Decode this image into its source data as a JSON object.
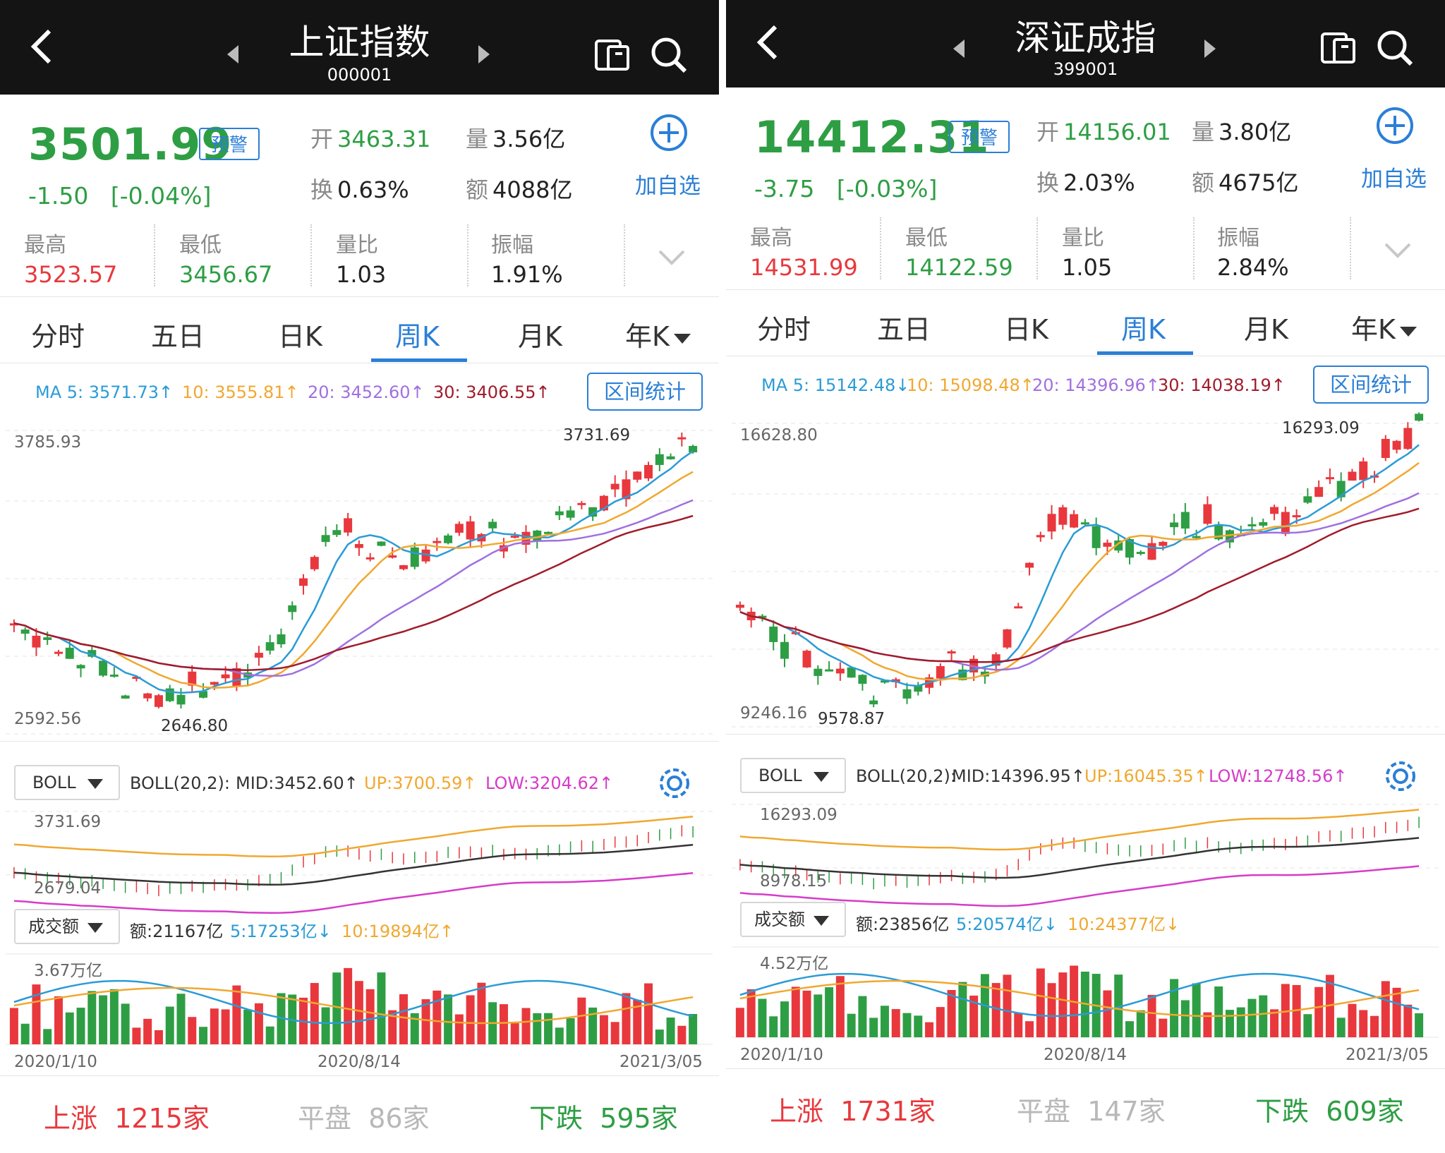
{
  "panels": [
    {
      "title": "上证指数",
      "code": "000001",
      "price": "3501.99",
      "alert_label": "预警",
      "change": "-1.50",
      "change_pct": "[-0.04%]",
      "open_label": "开",
      "open": "3463.31",
      "volume_label": "量",
      "volume": "3.56亿",
      "turnover_label": "换",
      "turnover": "0.63%",
      "amount_label": "额",
      "amount": "4088亿",
      "add_label": "加自选",
      "high_label": "最高",
      "high": "3523.57",
      "low_label": "最低",
      "low": "3456.67",
      "ratio_label": "量比",
      "ratio": "1.03",
      "amp_label": "振幅",
      "amp": "1.91%",
      "tabs": [
        "分时",
        "五日",
        "日K",
        "周K",
        "月K",
        "年K"
      ],
      "active_tab": "周K",
      "ma": {
        "ma5": "MA 5: 3571.73↑",
        "ma10": "10: 3555.81↑",
        "ma20": "20: 3452.60↑",
        "ma30": "30: 3406.55↑"
      },
      "range_label": "区间统计",
      "k_top": "3785.93",
      "k_bottom": "2592.56",
      "k_max_label": "3731.69",
      "k_min_label": "2646.80",
      "boll_select": "BOLL",
      "boll": {
        "params": "BOLL(20,2):",
        "mid": "MID:3452.60↑",
        "up": "UP:3700.59↑",
        "low": "LOW:3204.62↑"
      },
      "boll_top": "3731.69",
      "boll_bottom": "2679.04",
      "vol_select": "成交额",
      "vol": {
        "amt": "额:21167亿",
        "ma5": "5:17253亿↓",
        "ma10": "10:19894亿↑"
      },
      "vol_top": "3.67万亿",
      "dates": [
        "2020/1/10",
        "2020/8/14",
        "2021/3/05"
      ],
      "rise": "上涨",
      "rise_n": "1215家",
      "flat": "平盘",
      "flat_n": "86家",
      "fall": "下跌",
      "fall_n": "595家"
    },
    {
      "title": "深证成指",
      "code": "399001",
      "price": "14412.31",
      "alert_label": "预警",
      "change": "-3.75",
      "change_pct": "[-0.03%]",
      "open_label": "开",
      "open": "14156.01",
      "volume_label": "量",
      "volume": "3.80亿",
      "turnover_label": "换",
      "turnover": "2.03%",
      "amount_label": "额",
      "amount": "4675亿",
      "add_label": "加自选",
      "high_label": "最高",
      "high": "14531.99",
      "low_label": "最低",
      "low": "14122.59",
      "ratio_label": "量比",
      "ratio": "1.05",
      "amp_label": "振幅",
      "amp": "2.84%",
      "tabs": [
        "分时",
        "五日",
        "日K",
        "周K",
        "月K",
        "年K"
      ],
      "active_tab": "周K",
      "ma": {
        "ma5": "MA 5: 15142.48↓",
        "ma10": "10: 15098.48↑",
        "ma20": "20: 14396.96↑",
        "ma30": "30: 14038.19↑"
      },
      "range_label": "区间统计",
      "k_top": "16628.80",
      "k_bottom": "9246.16",
      "k_max_label": "16293.09",
      "k_min_label": "9578.87",
      "boll_select": "BOLL",
      "boll": {
        "params": "BOLL(20,2):",
        "mid": "MID:14396.95↑",
        "up": "UP:16045.35↑",
        "low": "LOW:12748.56↑"
      },
      "boll_top": "16293.09",
      "boll_bottom": "8978.15",
      "vol_select": "成交额",
      "vol": {
        "amt": "额:23856亿",
        "ma5": "5:20574亿↓",
        "ma10": "10:24377亿↓"
      },
      "vol_top": "4.52万亿",
      "dates": [
        "2020/1/10",
        "2020/8/14",
        "2021/3/05"
      ],
      "rise": "上涨",
      "rise_n": "1731家",
      "flat": "平盘",
      "flat_n": "147家",
      "fall": "下跌",
      "fall_n": "609家"
    }
  ],
  "colors": {
    "up": "#e8383d",
    "down": "#2e9e44",
    "accent": "#2b7fd6",
    "ma5": "#2b9bd6",
    "ma10": "#f0a830",
    "ma20": "#a070e0",
    "ma30": "#a01c2c"
  }
}
